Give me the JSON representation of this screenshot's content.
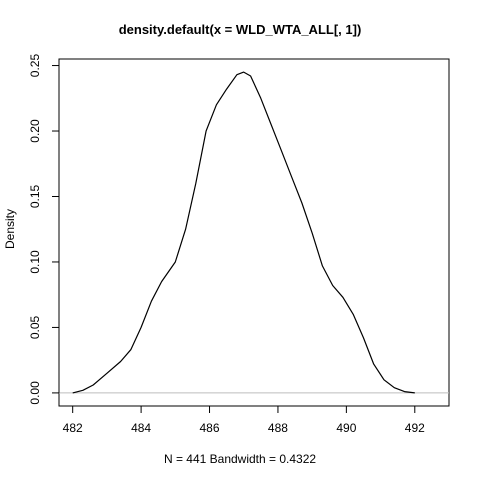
{
  "chart_data": {
    "type": "line",
    "title": "density.default(x = WLD_WTA_ALL[, 1])",
    "xlabel": "N = 441   Bandwidth = 0.4322",
    "ylabel": "Density",
    "xlim": [
      481.6,
      493.0
    ],
    "ylim": [
      -0.01,
      0.255
    ],
    "x_ticks": [
      482,
      484,
      486,
      488,
      490,
      492
    ],
    "y_ticks": [
      0.0,
      0.05,
      0.1,
      0.15,
      0.2,
      0.25
    ],
    "x_tick_labels": [
      "482",
      "484",
      "486",
      "488",
      "490",
      "492"
    ],
    "y_tick_labels": [
      "0.00",
      "0.05",
      "0.10",
      "0.15",
      "0.20",
      "0.25"
    ],
    "grid": false,
    "baseline_y": 0,
    "series": [
      {
        "color": "#000000",
        "x": [
          482.0,
          482.3,
          482.6,
          483.0,
          483.4,
          483.7,
          484.0,
          484.3,
          484.6,
          485.0,
          485.3,
          485.6,
          485.9,
          486.2,
          486.5,
          486.8,
          487.0,
          487.2,
          487.5,
          487.8,
          488.1,
          488.4,
          488.7,
          489.0,
          489.3,
          489.6,
          489.9,
          490.2,
          490.5,
          490.8,
          491.1,
          491.4,
          491.7,
          492.0
        ],
        "y": [
          0.0,
          0.002,
          0.006,
          0.015,
          0.024,
          0.033,
          0.05,
          0.07,
          0.085,
          0.1,
          0.125,
          0.16,
          0.2,
          0.22,
          0.232,
          0.243,
          0.245,
          0.242,
          0.225,
          0.205,
          0.185,
          0.165,
          0.145,
          0.122,
          0.097,
          0.082,
          0.073,
          0.06,
          0.042,
          0.022,
          0.01,
          0.004,
          0.001,
          0.0
        ]
      }
    ]
  }
}
